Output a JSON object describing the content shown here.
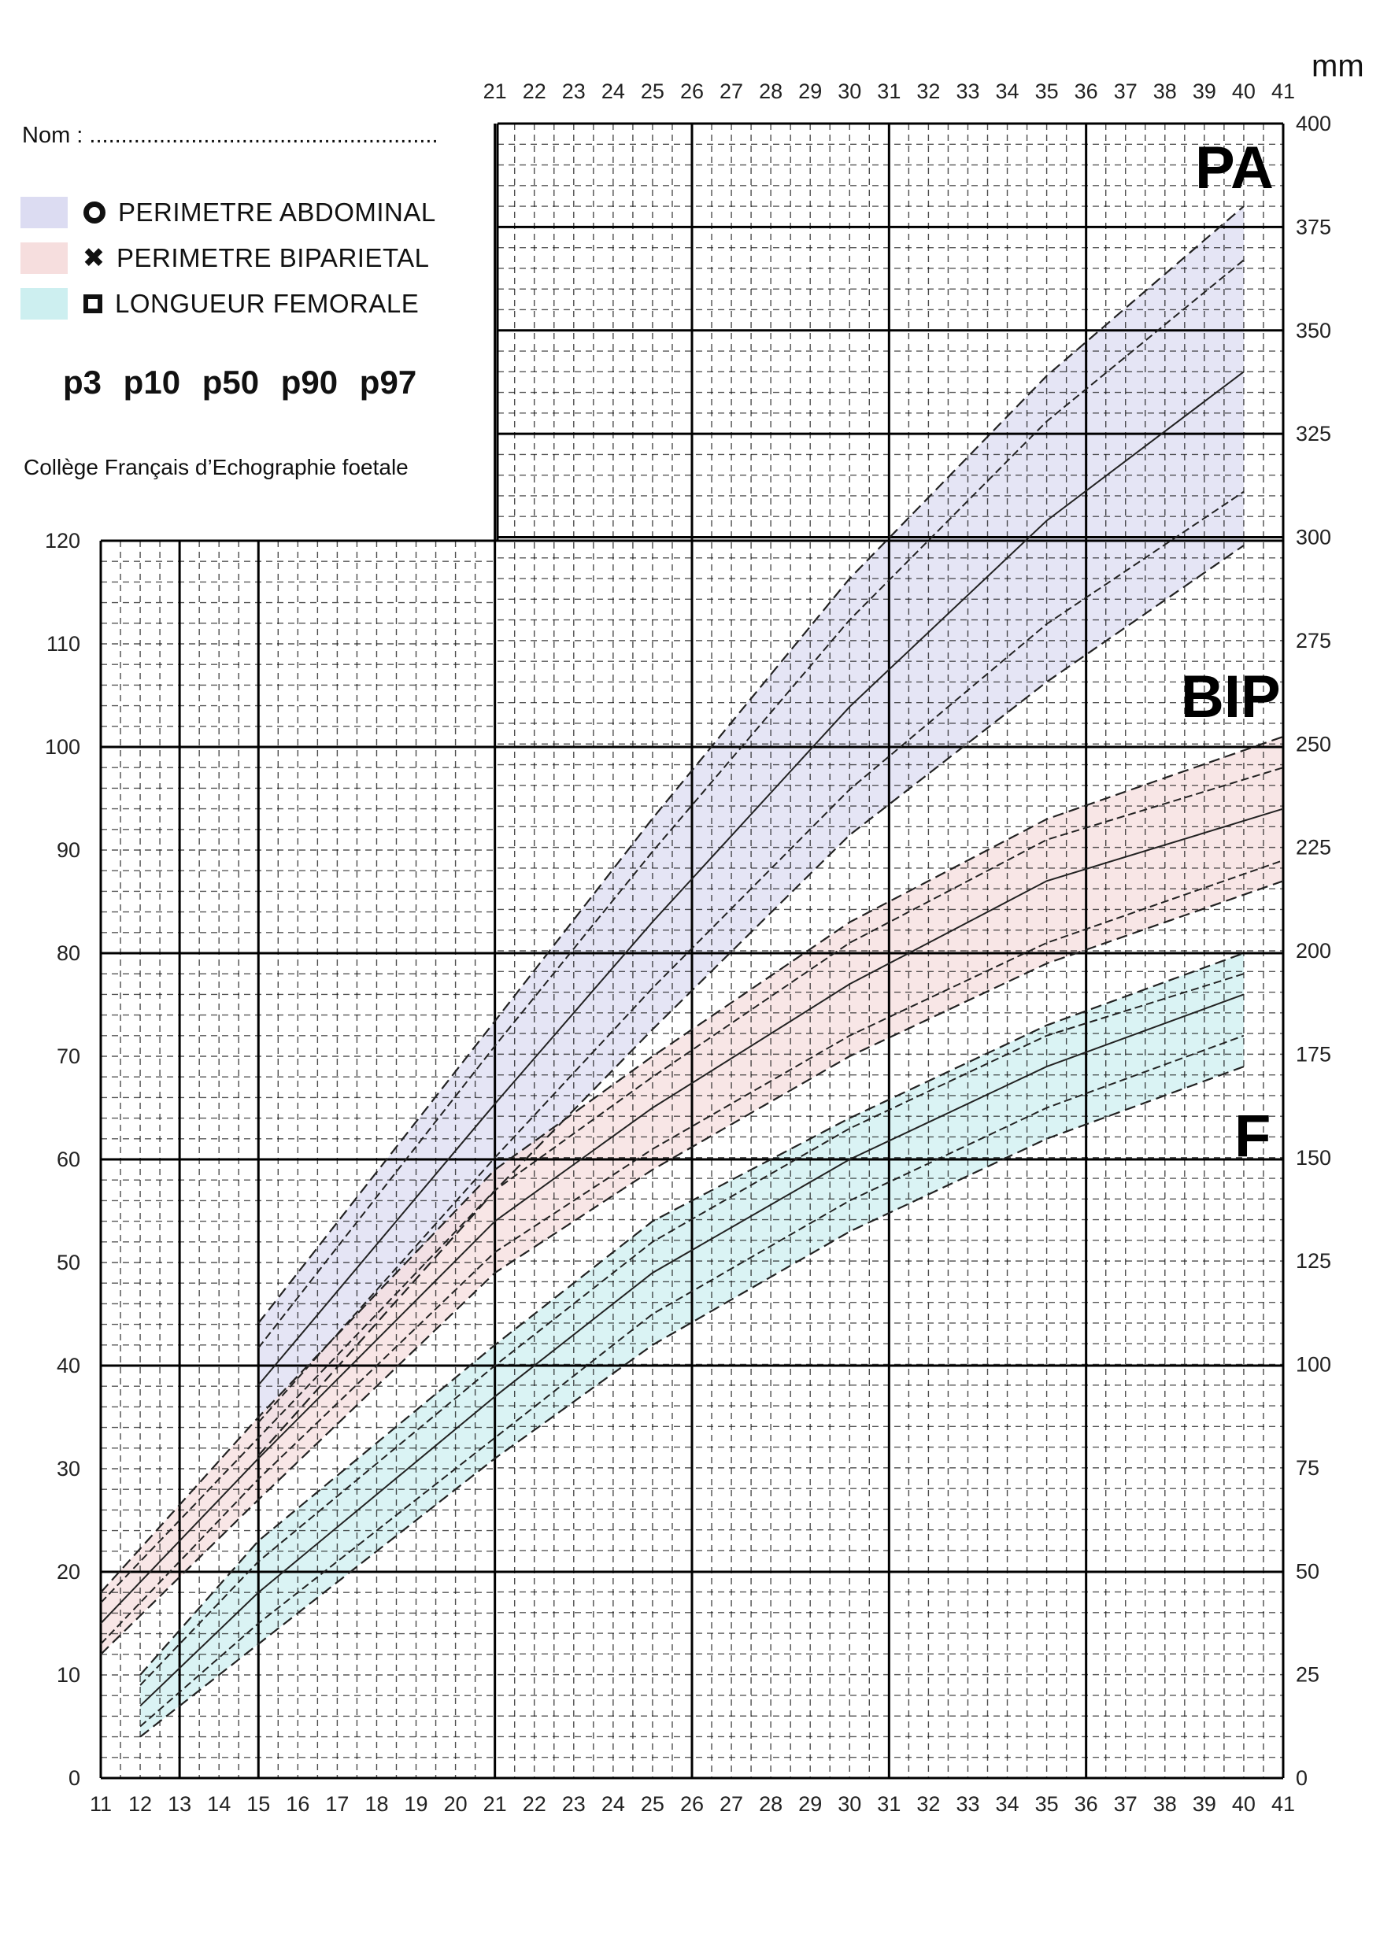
{
  "header": {
    "name_field": "Nom : .......................................................",
    "unit": "mm"
  },
  "legend": [
    {
      "label": "PERIMETRE ABDOMINAL",
      "marker": "circle-marker",
      "color": "#dcdcf2"
    },
    {
      "label": "PERIMETRE BIPARIETAL",
      "marker": "cross-marker",
      "color": "#f6dede"
    },
    {
      "label": "LONGUEUR FEMORALE",
      "marker": "square-marker",
      "color": "#cdeff0"
    }
  ],
  "percentiles_text": "p3  p10  p50  p90  p97",
  "source": "Collège Français d’Echographie foetale",
  "curve_labels": {
    "pa": "PA",
    "bip": "BIP",
    "f": "F"
  },
  "chart_data": {
    "type": "line",
    "x_ticks_bottom": [
      "11",
      "12",
      "13",
      "14",
      "15",
      "16",
      "17",
      "18",
      "19",
      "20",
      "21",
      "22",
      "23",
      "24",
      "25",
      "26",
      "27",
      "28",
      "29",
      "30",
      "31",
      "32",
      "33",
      "34",
      "35",
      "36",
      "37",
      "38",
      "39",
      "40",
      "41"
    ],
    "x_ticks_top": [
      "21",
      "22",
      "23",
      "24",
      "25",
      "26",
      "27",
      "28",
      "29",
      "30",
      "31",
      "32",
      "33",
      "34",
      "35",
      "36",
      "37",
      "38",
      "39",
      "40",
      "41"
    ],
    "left_axis": {
      "ylim": [
        0,
        120
      ],
      "ticks": [
        "0",
        "10",
        "20",
        "30",
        "40",
        "50",
        "60",
        "70",
        "80",
        "90",
        "100",
        "110",
        "120"
      ]
    },
    "right_axis": {
      "ylim": [
        0,
        400
      ],
      "ticks": [
        "0",
        "25",
        "50",
        "75",
        "100",
        "125",
        "150",
        "175",
        "200",
        "225",
        "250",
        "275",
        "300",
        "325",
        "350",
        "375",
        "400"
      ]
    },
    "xlim": [
      11,
      41
    ],
    "series": [
      {
        "group": "PA",
        "axis": "right",
        "color": "#dcdcf2",
        "percentiles": {
          "p3": {
            "x": [
              15,
              21,
              25,
              30,
              35,
              40
            ],
            "y": [
              78,
              142,
              181,
              228,
              265,
              298
            ]
          },
          "p10": {
            "x": [
              15,
              21,
              25,
              30,
              35,
              40
            ],
            "y": [
              86,
              150,
              191,
              239,
              279,
              311
            ]
          },
          "p50": {
            "x": [
              15,
              21,
              25,
              30,
              35,
              40
            ],
            "y": [
              95,
              163,
              207,
              259,
              304,
              340
            ]
          },
          "p90": {
            "x": [
              15,
              21,
              25,
              30,
              35,
              40
            ],
            "y": [
              104,
              177,
              224,
              280,
              328,
              367
            ]
          },
          "p97": {
            "x": [
              15,
              21,
              25,
              30,
              35,
              40
            ],
            "y": [
              110,
              183,
              232,
              290,
              339,
              380
            ]
          }
        }
      },
      {
        "group": "BIP",
        "axis": "left",
        "color": "#f6dede",
        "percentiles": {
          "p3": {
            "x": [
              11,
              15,
              21,
              25,
              30,
              35,
              41
            ],
            "y": [
              12,
              27,
              49,
              59,
              70,
              79,
              87
            ]
          },
          "p10": {
            "x": [
              11,
              15,
              21,
              25,
              30,
              35,
              41
            ],
            "y": [
              13,
              29,
              51,
              61,
              72,
              81,
              89
            ]
          },
          "p50": {
            "x": [
              11,
              15,
              21,
              25,
              30,
              35,
              41
            ],
            "y": [
              15,
              31,
              54,
              65,
              77,
              87,
              94
            ]
          },
          "p90": {
            "x": [
              11,
              15,
              21,
              25,
              30,
              35,
              41
            ],
            "y": [
              17,
              33,
              57,
              68,
              81,
              91,
              98
            ]
          },
          "p97": {
            "x": [
              11,
              15,
              21,
              25,
              30,
              35,
              41
            ],
            "y": [
              18,
              35,
              59,
              70,
              83,
              93,
              101
            ]
          }
        }
      },
      {
        "group": "F",
        "axis": "left",
        "color": "#cdeff0",
        "percentiles": {
          "p3": {
            "x": [
              12,
              15,
              21,
              25,
              30,
              35,
              40
            ],
            "y": [
              4,
              13,
              31,
              42,
              53,
              62,
              69
            ]
          },
          "p10": {
            "x": [
              12,
              15,
              21,
              25,
              30,
              35,
              40
            ],
            "y": [
              5,
              15,
              33,
              45,
              56,
              65,
              72
            ]
          },
          "p50": {
            "x": [
              12,
              15,
              21,
              25,
              30,
              35,
              40
            ],
            "y": [
              7,
              18,
              37,
              49,
              60,
              69,
              76
            ]
          },
          "p90": {
            "x": [
              12,
              15,
              21,
              25,
              30,
              35,
              40
            ],
            "y": [
              9,
              21,
              40,
              52,
              63,
              72,
              78
            ]
          },
          "p97": {
            "x": [
              12,
              15,
              21,
              25,
              30,
              35,
              40
            ],
            "y": [
              10,
              23,
              42,
              54,
              64,
              73,
              80
            ]
          }
        }
      }
    ]
  }
}
